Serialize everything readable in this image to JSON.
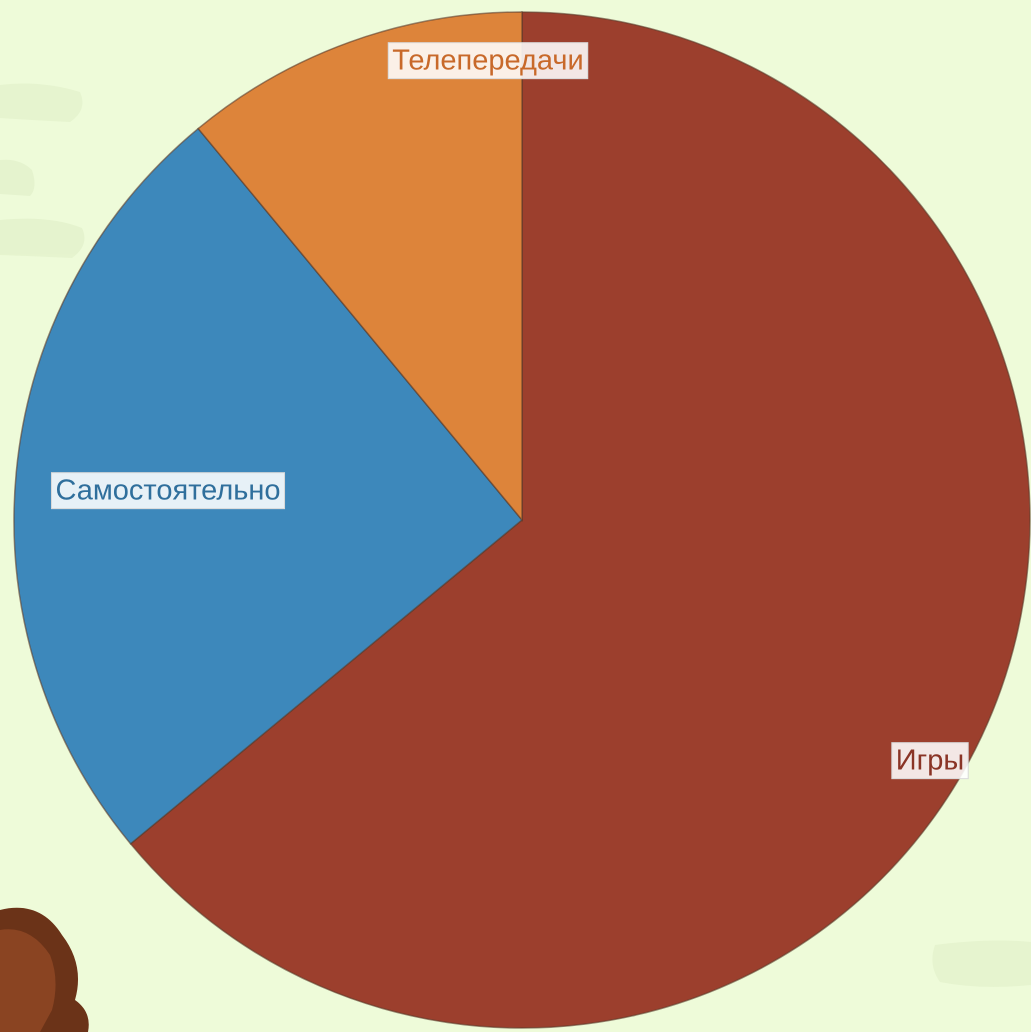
{
  "chart_data": {
    "type": "pie",
    "categories": [
      "Игры",
      "Самостоятельно",
      "Телепередачи"
    ],
    "values": [
      64,
      25,
      11
    ],
    "colors": [
      "#9c3f2d",
      "#3d88bb",
      "#dd843a"
    ],
    "label_colors": [
      "#8a3426",
      "#2f6f9c",
      "#c8692a"
    ]
  }
}
